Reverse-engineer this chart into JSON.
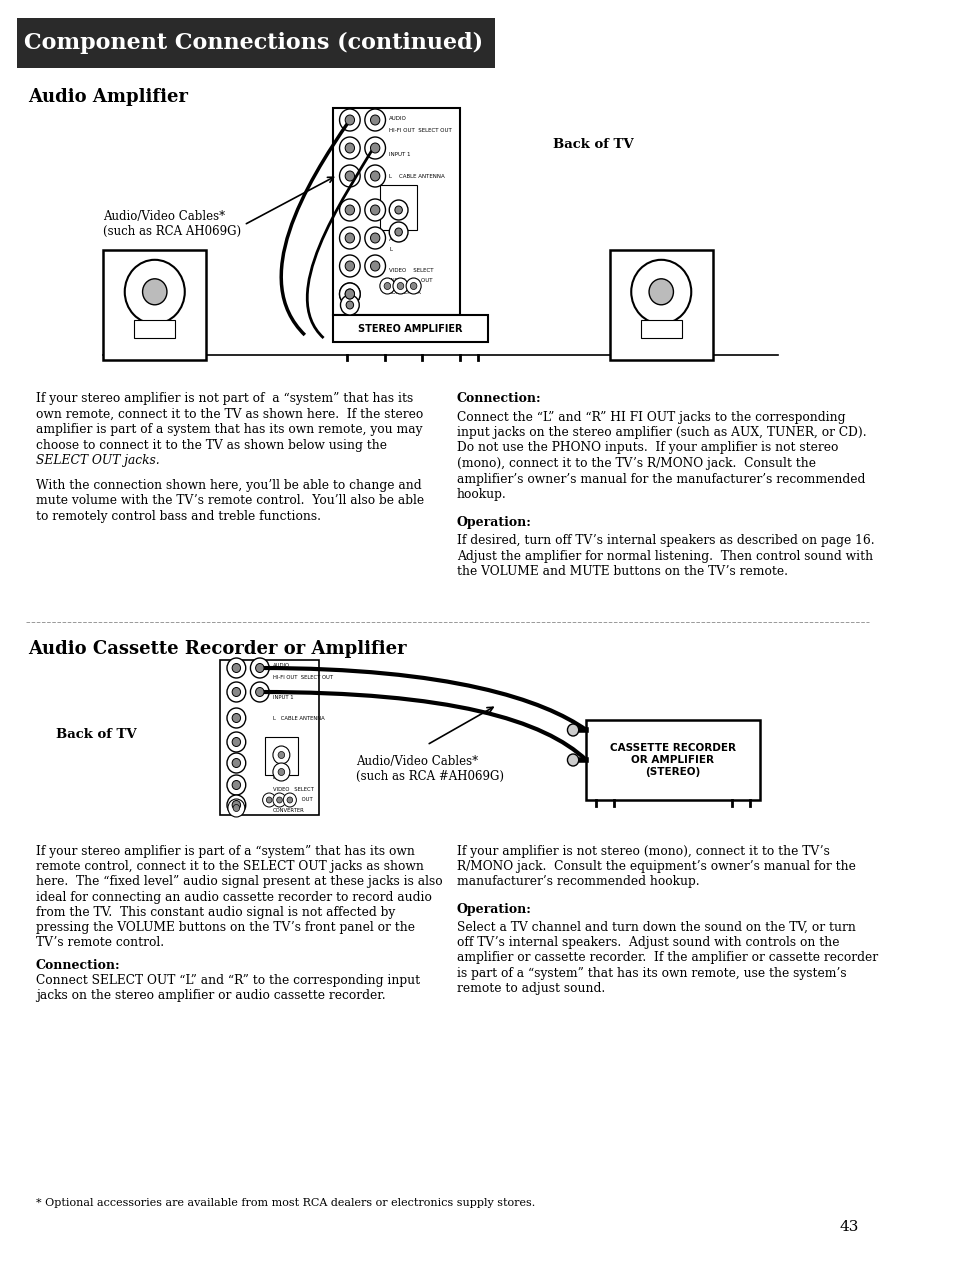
{
  "page_bg": "#ffffff",
  "title_banner_text": "Component Connections (continued)",
  "section1_title": "Audio Amplifier",
  "back_of_tv_label1": "Back of TV",
  "av_cables_label1": "Audio/Video Cables*\n(such as RCA AH069G)",
  "left_col_para1_line1": "If your stereo amplifier is not part of  a “system” that has its",
  "left_col_para1_line2": "own remote, connect it to the TV as shown here.  If the stereo",
  "left_col_para1_line3": "amplifier is part of a system that has its own remote, you may",
  "left_col_para1_line4": "choose to connect it to the TV as shown below using the",
  "left_col_para1_line5": "SELECT OUT jacks.",
  "left_col_para1_line6": "With the connection shown here, you’ll be able to change and",
  "left_col_para1_line7": "mute volume with the TV’s remote control.  You’ll also be able",
  "left_col_para1_line8": "to remotely control bass and treble functions.",
  "right_col_head1": "Connection:",
  "right_col_para1_line1": "Connect the “L” and “R” HI FI OUT jacks to the corresponding",
  "right_col_para1_line2": "input jacks on the stereo amplifier (such as AUX, TUNER, or CD).",
  "right_col_para1_line3": "Do not use the PHONO inputs.  If your amplifier is not stereo",
  "right_col_para1_line4": "(mono), connect it to the TV’s R/MONO jack.  Consult the",
  "right_col_para1_line5": "amplifier’s owner’s manual for the manufacturer’s recommended",
  "right_col_para1_line6": "hookup.",
  "right_col_head2": "Operation:",
  "right_col_para2_line1": "If desired, turn off TV’s internal speakers as described on page 16.",
  "right_col_para2_line2": "Adjust the amplifier for normal listening.  Then control sound with",
  "right_col_para2_line3": "the VOLUME and MUTE buttons on the TV’s remote.",
  "section2_title": "Audio Cassette Recorder or Amplifier",
  "back_of_tv_label2": "Back of TV",
  "av_cables_label2": "Audio/Video Cables*\n(such as RCA #AH069G)",
  "cassette_box_label": "CASSETTE RECORDER\nOR AMPLIFIER\n(STEREO)",
  "left_col_para2_line1": "If your stereo amplifier is part of a “system” that has its own",
  "left_col_para2_line2": "remote control, connect it to the SELECT OUT jacks as shown",
  "left_col_para2_line3": "here.  The “fixed level” audio signal present at these jacks is also",
  "left_col_para2_line4": "ideal for connecting an audio cassette recorder to record audio",
  "left_col_para2_line5": "from the TV.  This constant audio signal is not affected by",
  "left_col_para2_line6": "pressing the VOLUME buttons on the TV’s front panel or the",
  "left_col_para2_line7": "TV’s remote control.",
  "left_col_head2": "Connection:",
  "left_col_para2_line8": "Connect SELECT OUT “L” and “R” to the corresponding input",
  "left_col_para2_line9": "jacks on the stereo amplifier or audio cassette recorder.",
  "right_col_para3_line1": "If your amplifier is not stereo (mono), connect it to the TV’s",
  "right_col_para3_line2": "R/MONO jack.  Consult the equipment’s owner’s manual for the",
  "right_col_para3_line3": "manufacturer’s recommended hookup.",
  "right_col_head3": "Operation:",
  "right_col_para4_line1": "Select a TV channel and turn down the sound on the TV, or turn",
  "right_col_para4_line2": "off TV’s internal speakers.  Adjust sound with controls on the",
  "right_col_para4_line3": "amplifier or cassette recorder.  If the amplifier or cassette recorder",
  "right_col_para4_line4": "is part of a “system” that has its own remote, use the system’s",
  "right_col_para4_line5": "remote to adjust sound.",
  "footnote": "* Optional accessories are available from most RCA dealers or electronics supply stores.",
  "page_num": "43"
}
